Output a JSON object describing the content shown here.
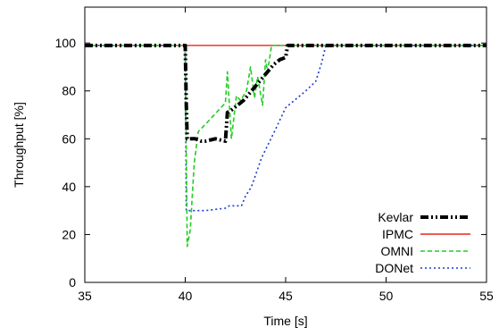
{
  "chart_data": {
    "type": "line",
    "xlabel": "Time [s]",
    "ylabel": "Throughput [%]",
    "xlim": [
      35,
      55
    ],
    "ylim": [
      0,
      115
    ],
    "xticks": [
      35,
      40,
      45,
      50,
      55
    ],
    "yticks": [
      0,
      20,
      40,
      60,
      80,
      100
    ],
    "grid": false,
    "legend_position": "bottom-right",
    "series": [
      {
        "name": "Kevlar",
        "color": "#000000",
        "dash": "dash-dot-dot",
        "x": [
          35,
          40,
          40.05,
          40.1,
          40.2,
          40.5,
          40.8,
          41.0,
          41.5,
          42.0,
          42.1,
          42.3,
          42.6,
          42.9,
          43.2,
          43.5,
          43.8,
          44.1,
          44.4,
          44.7,
          45.0,
          45.1,
          45.3,
          55
        ],
        "y": [
          99,
          99,
          75,
          60,
          60,
          60,
          59,
          59,
          60,
          59,
          71,
          72,
          74,
          76,
          79,
          82,
          85,
          88,
          91,
          93,
          94,
          99,
          99,
          99
        ]
      },
      {
        "name": "IPMC",
        "color": "#e8261b",
        "dash": "solid",
        "x": [
          35,
          55
        ],
        "y": [
          99,
          99
        ]
      },
      {
        "name": "OMNI",
        "color": "#22cc22",
        "dash": "dash",
        "x": [
          35,
          40,
          40.1,
          40.25,
          40.45,
          40.65,
          41.0,
          42.0,
          42.1,
          42.3,
          42.55,
          42.75,
          43.05,
          43.25,
          43.45,
          43.6,
          43.85,
          44.0,
          44.1,
          44.3,
          44.5,
          44.8,
          55
        ],
        "y": [
          99,
          99,
          15,
          22,
          50,
          63,
          66,
          75,
          88,
          60,
          78,
          76,
          80,
          90,
          77,
          86,
          74,
          93,
          88,
          99,
          99,
          99,
          99
        ]
      },
      {
        "name": "DONet",
        "color": "#1a3bcc",
        "dash": "dot",
        "x": [
          35,
          40,
          40.05,
          41.0,
          42.0,
          42.2,
          42.8,
          43.0,
          43.3,
          43.8,
          44.5,
          45.0,
          46.0,
          46.5,
          46.8,
          47.0,
          55
        ],
        "y": [
          99,
          99,
          30,
          30,
          31,
          32,
          32,
          36,
          40,
          52,
          64,
          73,
          80,
          84,
          92,
          99,
          99
        ]
      }
    ]
  }
}
